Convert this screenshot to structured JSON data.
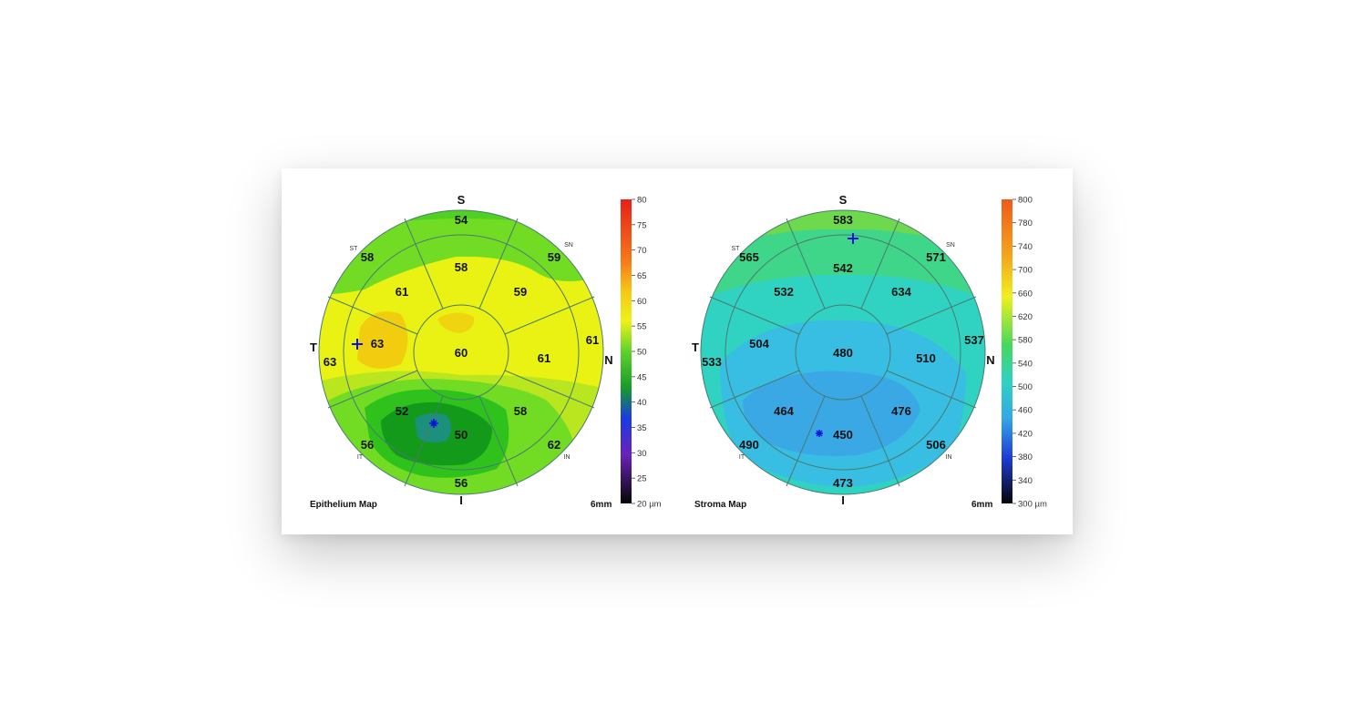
{
  "maps": [
    {
      "id": "epi",
      "title": "Epithelium Map",
      "size_label": "6mm",
      "directions": {
        "S": "S",
        "I": "I",
        "T": "T",
        "N": "N",
        "ST": "ST",
        "SN": "SN",
        "IT": "IT",
        "IN": "IN"
      },
      "values": {
        "center": "60",
        "inner_superior": "58",
        "inner_superior_nasal": "59",
        "inner_nasal": "61",
        "inner_inferior_nasal": "58",
        "inner_inferior": "50",
        "inner_inferior_temporal": "52",
        "inner_temporal": "63",
        "inner_superior_temporal": "61",
        "outer_superior": "54",
        "outer_superior_nasal": "59",
        "outer_nasal": "61",
        "outer_inferior_nasal": "62",
        "outer_inferior": "56",
        "outer_inferior_temporal": "56",
        "outer_temporal": "63",
        "outer_superior_temporal": "58"
      },
      "scale": {
        "unit": "µm",
        "ticks": [
          "80",
          "75",
          "70",
          "65",
          "60",
          "55",
          "50",
          "45",
          "40",
          "35",
          "30",
          "25",
          "20 µm"
        ]
      }
    },
    {
      "id": "stroma",
      "title": "Stroma Map",
      "size_label": "6mm",
      "directions": {
        "S": "S",
        "I": "I",
        "T": "T",
        "N": "N",
        "ST": "ST",
        "SN": "SN",
        "IT": "IT",
        "IN": "IN"
      },
      "values": {
        "center": "480",
        "inner_superior": "542",
        "inner_superior_nasal": "634",
        "inner_nasal": "510",
        "inner_inferior_nasal": "476",
        "inner_inferior": "450",
        "inner_inferior_temporal": "464",
        "inner_temporal": "504",
        "inner_superior_temporal": "532",
        "outer_superior": "583",
        "outer_superior_nasal": "571",
        "outer_nasal": "537",
        "outer_inferior_nasal": "506",
        "outer_inferior": "473",
        "outer_inferior_temporal": "490",
        "outer_temporal": "533",
        "outer_superior_temporal": "565"
      },
      "scale": {
        "unit": "µm",
        "ticks": [
          "800",
          "780",
          "740",
          "700",
          "660",
          "620",
          "580",
          "540",
          "500",
          "460",
          "420",
          "380",
          "340",
          "300 µm"
        ]
      }
    }
  ],
  "colors": {
    "epi_base": "#eaf213",
    "epi_yellow_green": "#b9e61f",
    "epi_light_green": "#72dc25",
    "epi_green": "#2fc11c",
    "epi_dark_green": "#139a1a",
    "epi_teal": "#1d8f7d",
    "epi_orange": "#f3c80f",
    "stroma_outer": "#6fd94e",
    "stroma_green": "#3fd68a",
    "stroma_teal": "#30d3c1",
    "stroma_cyan": "#38bde3",
    "stroma_blue": "#3ba8e6",
    "marker_blue": "#1010e0"
  }
}
